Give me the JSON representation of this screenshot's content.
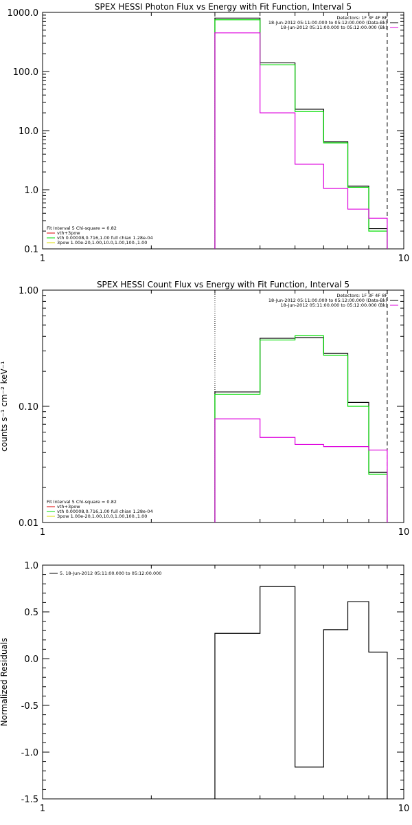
{
  "chart_data": [
    {
      "type": "line",
      "title": "SPEX HESSI Photon Flux vs Energy with Fit Function, Interval 5",
      "ylabel": "",
      "xscale": "log",
      "yscale": "log",
      "xlim": [
        1,
        10
      ],
      "ylim": [
        0.1,
        1000
      ],
      "x_ticks": [
        "1",
        "10"
      ],
      "y_ticks": [
        "0.1",
        "1.0",
        "10.0",
        "100.0",
        "1000.0"
      ],
      "edges": [
        3,
        4,
        5,
        6,
        7,
        8,
        9
      ],
      "series": [
        {
          "color": "#000000",
          "values": [
            800,
            140,
            23,
            6.5,
            1.15,
            0.22
          ]
        },
        {
          "color": "#00dd00",
          "values": [
            750,
            130,
            21,
            6.2,
            1.1,
            0.2
          ]
        },
        {
          "color": "#dd00dd",
          "values": [
            450,
            20,
            2.7,
            1.05,
            0.47,
            0.33
          ]
        }
      ],
      "vlines": [
        {
          "x": 3,
          "style": "dotted"
        },
        {
          "x": 9,
          "style": "dashed"
        }
      ],
      "legend_top_right": [
        {
          "text": "Detectors: 1F 3F 4F 8F",
          "color": ""
        },
        {
          "text": "18-Jun-2012 05:11:00.000 to 05:12:00.000 (Data-Bk)",
          "color": "#000000"
        },
        {
          "text": "18-Jun-2012 05:11:00.000 to 05:12:00.000 (Bk)",
          "color": "#dd00dd"
        }
      ],
      "legend_bottom_left": [
        {
          "text": "Fit Interval 5   Chi-square = 0.82",
          "color": ""
        },
        {
          "text": "vth+3pow",
          "color": "#dd0000"
        },
        {
          "text": "vth 0.00008,0.716,1.00   full chian 1.28e-04",
          "color": "#00dd00"
        },
        {
          "text": "3pow 1.00e-20,1.00,10.0,1.00,100.,1.00",
          "color": "#dddd00"
        }
      ]
    },
    {
      "type": "line",
      "title": "SPEX HESSI Count Flux vs Energy with Fit Function, Interval 5",
      "ylabel": "counts s⁻¹ cm⁻² keV⁻¹",
      "xscale": "log",
      "yscale": "log",
      "xlim": [
        1,
        10
      ],
      "ylim": [
        0.01,
        1.0
      ],
      "x_ticks": [
        "1",
        "10"
      ],
      "y_ticks": [
        "0.01",
        "0.10",
        "1.00"
      ],
      "edges": [
        3,
        4,
        5,
        6,
        7,
        8,
        9
      ],
      "series": [
        {
          "color": "#000000",
          "values": [
            0.133,
            0.385,
            0.39,
            0.285,
            0.108,
            0.027
          ]
        },
        {
          "color": "#00dd00",
          "values": [
            0.127,
            0.372,
            0.405,
            0.275,
            0.1,
            0.026
          ]
        },
        {
          "color": "#dd00dd",
          "values": [
            0.078,
            0.054,
            0.047,
            0.045,
            0.045,
            0.042
          ]
        }
      ],
      "vlines": [
        {
          "x": 3,
          "style": "dotted"
        },
        {
          "x": 9,
          "style": "dashed"
        }
      ],
      "legend_top_right": [
        {
          "text": "Detectors: 1F 3F 4F 8F",
          "color": ""
        },
        {
          "text": "18-Jun-2012 05:11:00.000 to 05:12:00.000 (Data-Bk)",
          "color": "#000000"
        },
        {
          "text": "18-Jun-2012 05:11:00.000 to 05:12:00.000 (Bk)",
          "color": "#dd00dd"
        }
      ],
      "legend_bottom_left": [
        {
          "text": "Fit Interval 5   Chi-square = 0.82",
          "color": ""
        },
        {
          "text": "vth+3pow",
          "color": "#dd0000"
        },
        {
          "text": "vth 0.00008,0.716,1.00   full chian 1.28e-04",
          "color": "#00dd00"
        },
        {
          "text": "3pow 1.00e-20,1.00,10.0,1.00,100.,1.00",
          "color": "#dddd00"
        }
      ]
    },
    {
      "type": "line",
      "title": "",
      "ylabel": "Normalized Residuals",
      "xscale": "log",
      "yscale": "linear",
      "xlim": [
        1,
        10
      ],
      "ylim": [
        -1.5,
        1.0
      ],
      "x_ticks": [
        "1",
        "10"
      ],
      "y_ticks": [
        "1.0",
        "0.5",
        "0.0",
        "-0.5",
        "-1.0",
        "-1.5"
      ],
      "edges": [
        3,
        4,
        5,
        6,
        7,
        8,
        9
      ],
      "series": [
        {
          "color": "#000000",
          "values": [
            0.27,
            0.77,
            -1.16,
            0.31,
            0.61,
            0.07
          ]
        }
      ],
      "vlines": [],
      "legend_top_left": [
        {
          "text": "5. 18-Jun-2012 05:11:00.000 to 05:12:00.000",
          "color": "#000000"
        }
      ]
    }
  ]
}
